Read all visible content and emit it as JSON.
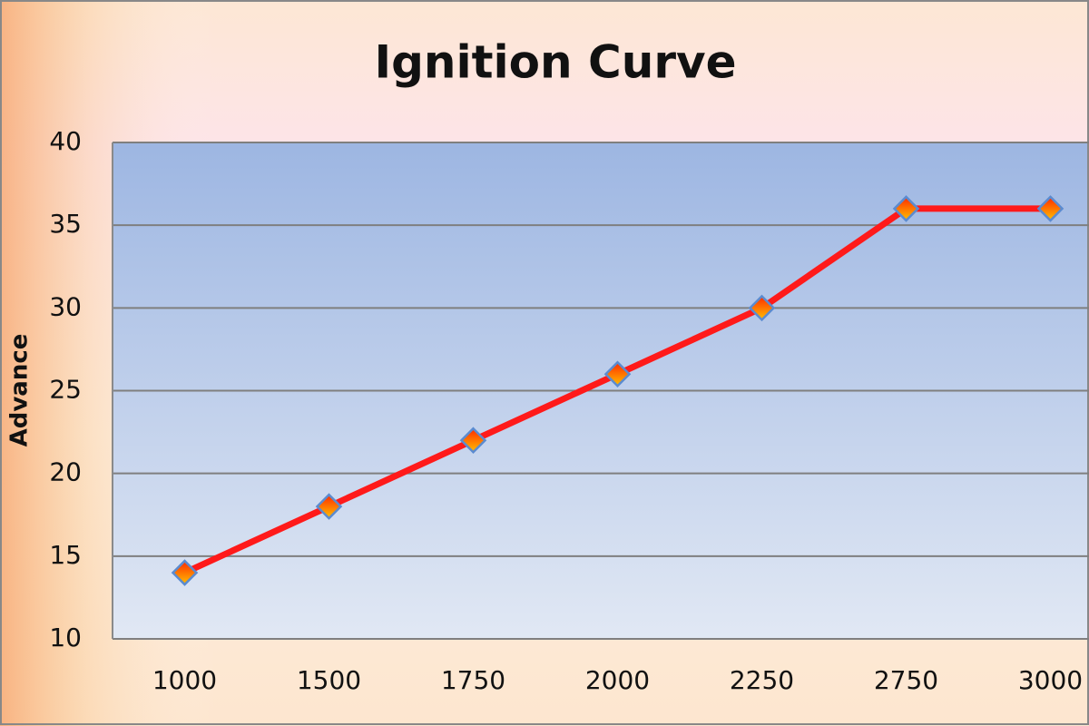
{
  "chart_data": {
    "type": "line",
    "title": "Ignition Curve",
    "y_label": "Advance",
    "categories": [
      "1000",
      "1500",
      "1750",
      "2000",
      "2250",
      "2750",
      "3000"
    ],
    "values": [
      14,
      18,
      22,
      26,
      30,
      36,
      36
    ],
    "color": "#ff1a1a",
    "ylim": [
      10,
      40
    ],
    "yticks": [
      10,
      15,
      20,
      25,
      30,
      35,
      40
    ],
    "grid": true
  }
}
